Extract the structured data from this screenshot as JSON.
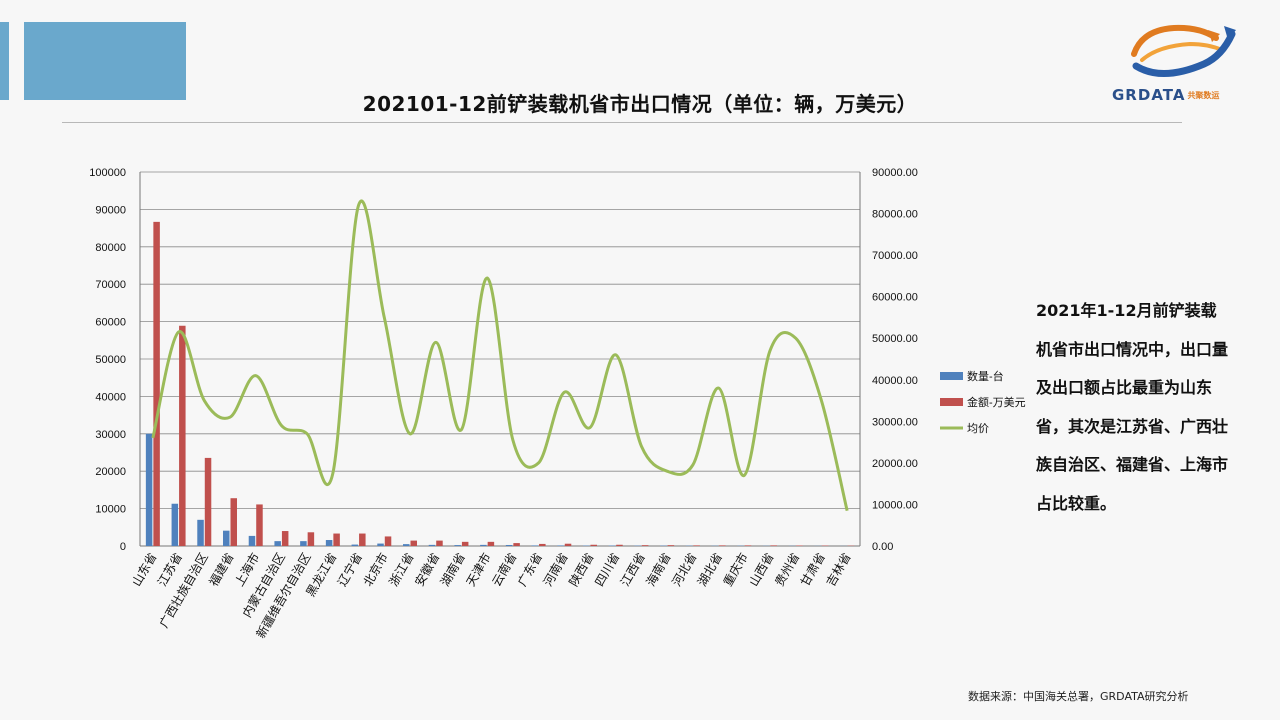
{
  "header": {
    "title": "202101-12前铲装载机省市出口情况（单位：辆，万美元）"
  },
  "logo": {
    "brand": "GRDATA",
    "brand_cn": "共聚数运"
  },
  "colors": {
    "accent": "#6aa8cc",
    "bar1": "#4f81bd",
    "bar2": "#c0504d",
    "line": "#9bbb59"
  },
  "chart_data": {
    "type": "bar",
    "categories": [
      "山东省",
      "江苏省",
      "广西壮族自治区",
      "福建省",
      "上海市",
      "内蒙古自治区",
      "新疆维吾尔自治区",
      "黑龙江省",
      "辽宁省",
      "北京市",
      "浙江省",
      "安徽省",
      "湖南省",
      "天津市",
      "云南省",
      "广东省",
      "河南省",
      "陕西省",
      "四川省",
      "江西省",
      "海南省",
      "河北省",
      "湖北省",
      "重庆市",
      "山西省",
      "贵州省",
      "甘肃省",
      "吉林省"
    ],
    "series": [
      {
        "name": "数量-台",
        "axis": "left",
        "type": "bar",
        "values": [
          30000,
          11300,
          7000,
          4100,
          2700,
          1300,
          1300,
          1600,
          380,
          650,
          500,
          300,
          250,
          300,
          270,
          150,
          150,
          110,
          120,
          100,
          100,
          90,
          70,
          80,
          60,
          50,
          40,
          30
        ]
      },
      {
        "name": "金额-万美元",
        "axis": "right",
        "type": "bar",
        "values": [
          78000,
          53000,
          21200,
          11500,
          10000,
          3600,
          3300,
          3000,
          3000,
          2300,
          1300,
          1300,
          1000,
          1000,
          700,
          500,
          550,
          300,
          300,
          200,
          200,
          150,
          150,
          150,
          150,
          120,
          100,
          80
        ]
      },
      {
        "name": "均价",
        "axis": "right",
        "type": "line",
        "values": [
          26000,
          51500,
          35000,
          31000,
          41000,
          29000,
          27000,
          17500,
          82000,
          55000,
          27000,
          49000,
          28000,
          64500,
          25500,
          20000,
          37000,
          28500,
          46000,
          24000,
          18000,
          19500,
          38000,
          17000,
          47000,
          50000,
          35000,
          8500
        ]
      }
    ],
    "y_left": {
      "min": 0,
      "max": 100000,
      "ticks": [
        "0",
        "10000",
        "20000",
        "30000",
        "40000",
        "50000",
        "60000",
        "70000",
        "80000",
        "90000",
        "100000"
      ]
    },
    "y_right": {
      "min": 0,
      "max": 90000,
      "ticks": [
        "0.00",
        "10000.00",
        "20000.00",
        "30000.00",
        "40000.00",
        "50000.00",
        "60000.00",
        "70000.00",
        "80000.00",
        "90000.00"
      ]
    },
    "legend": {
      "position": "right",
      "entries": [
        "数量-台",
        "金额-万美元",
        "均价"
      ]
    },
    "grid": true
  },
  "side_note": "2021年1-12月前铲装载机省市出口情况中，出口量及出口额占比最重为山东省，其次是江苏省、广西壮族自治区、福建省、上海市占比较重。",
  "source": "数据来源：中国海关总署，GRDATA研究分析"
}
